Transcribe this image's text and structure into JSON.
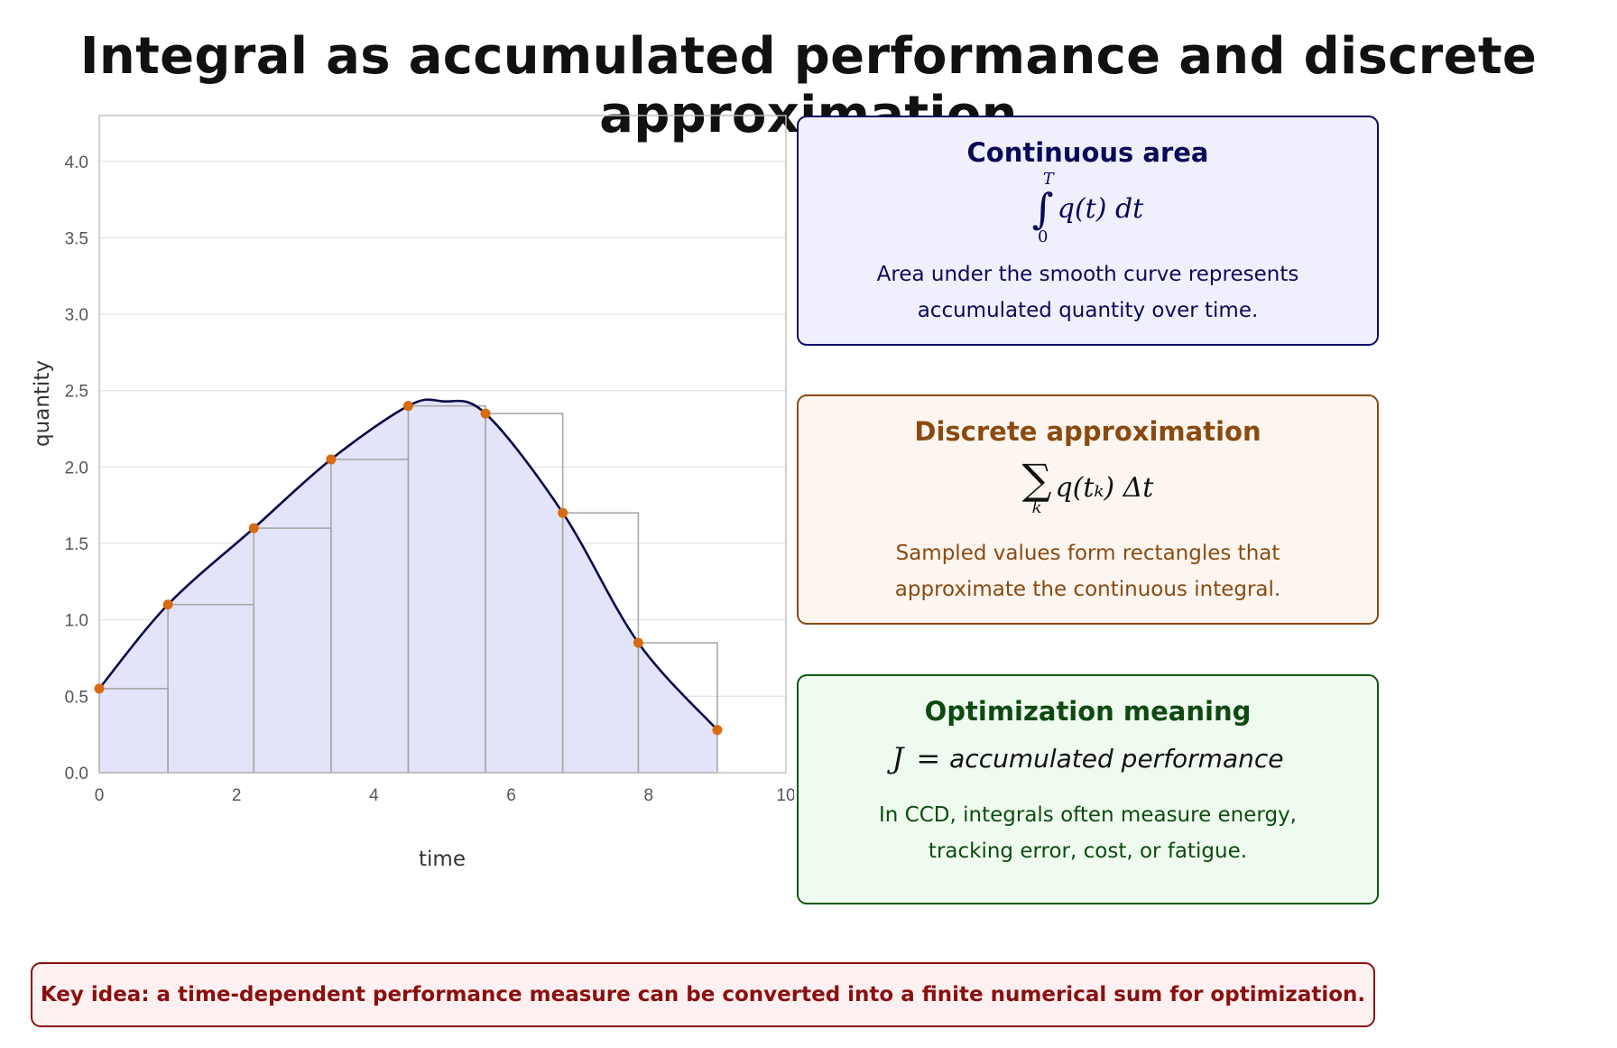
{
  "page": {
    "title": "Integral as accumulated performance and discrete approximation"
  },
  "chart_data": {
    "type": "area",
    "xlabel": "time",
    "ylabel": "quantity",
    "xlim": [
      0,
      10
    ],
    "ylim": [
      0,
      4.3
    ],
    "x_ticks": [
      0,
      2,
      4,
      6,
      8,
      10
    ],
    "x_tick_labels": [
      "0",
      "2",
      "4",
      "6",
      "8",
      "10"
    ],
    "y_ticks": [
      0,
      0.5,
      1,
      1.5,
      2,
      2.5,
      3,
      3.5,
      4
    ],
    "y_tick_labels": [
      "0.0",
      "0.5",
      "1.0",
      "1.5",
      "2.0",
      "2.5",
      "3.0",
      "3.5",
      "4.0"
    ],
    "grid": "horizontal",
    "samples": {
      "t": [
        0,
        1,
        2.25,
        3.375,
        4.5,
        5.625,
        6.75,
        7.85,
        9
      ],
      "q": [
        0.55,
        1.1,
        1.6,
        2.05,
        2.4,
        2.35,
        1.7,
        0.85,
        0.28
      ]
    },
    "curve": {
      "t": [
        0,
        1,
        2.25,
        3.375,
        4.5,
        5,
        5.625,
        6.75,
        7.85,
        9
      ],
      "q": [
        0.55,
        1.1,
        1.6,
        2.05,
        2.4,
        2.43,
        2.35,
        1.7,
        0.85,
        0.28
      ]
    },
    "colors": {
      "curve": "#0a0a4a",
      "fill": "#e3e3fa",
      "points": "#d86a10",
      "rect": "#a8a8a8",
      "grid": "#e3e3e3"
    }
  },
  "boxes": {
    "continuous": {
      "title": "Continuous area",
      "formula_upper": "T",
      "formula_lower": "0",
      "formula_body": "q(t) dt",
      "desc": "Area under the smooth curve represents accumulated quantity over time."
    },
    "discrete": {
      "title": "Discrete approximation",
      "formula_lower": "k",
      "formula_body": "q(tₖ) Δt",
      "desc": "Sampled values form rectangles that approximate the continuous integral."
    },
    "optimization": {
      "title": "Optimization meaning",
      "formula_lhs": "J",
      "formula_eq": "=",
      "formula_rhs": "accumulated performance",
      "desc": "In CCD, integrals often measure energy, tracking error, cost, or fatigue."
    }
  },
  "key_idea": "Key idea: a time-dependent performance measure can be converted into a finite numerical sum for optimization."
}
